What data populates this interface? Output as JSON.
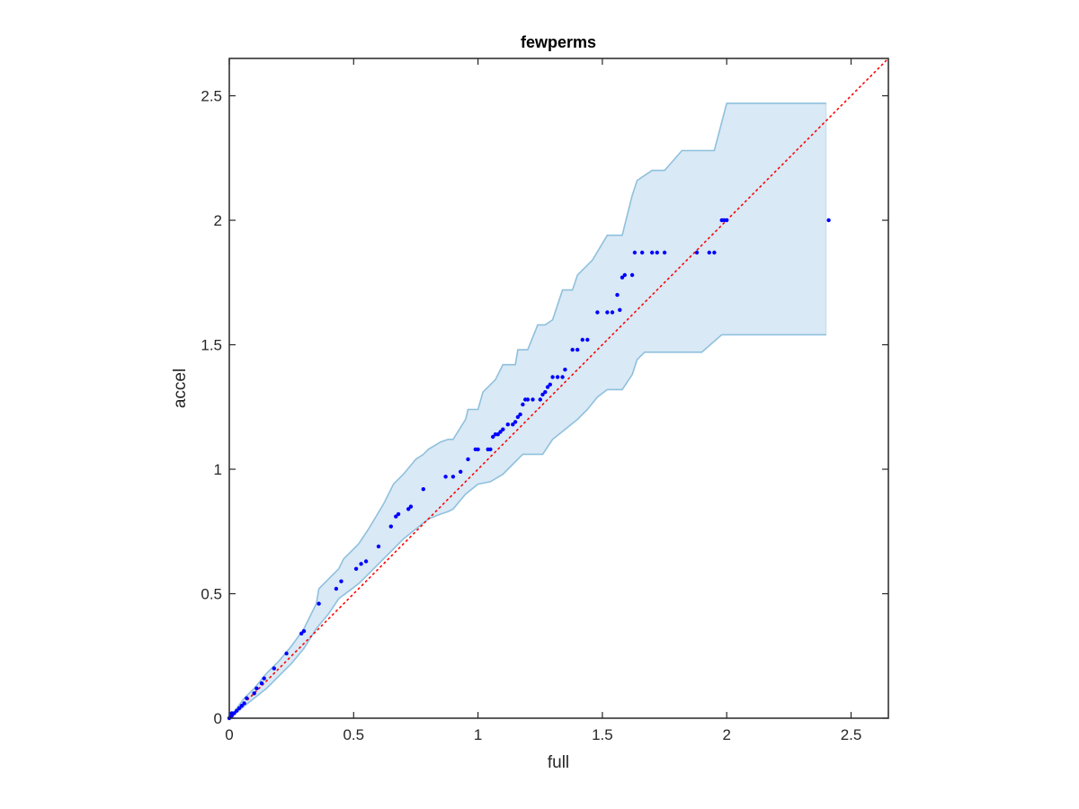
{
  "chart_data": {
    "type": "scatter",
    "title": "fewperms",
    "xlabel": "full",
    "ylabel": "accel",
    "xlim": [
      0,
      2.65
    ],
    "ylim": [
      0,
      2.65
    ],
    "xticks": [
      0,
      0.5,
      1,
      1.5,
      2,
      2.5
    ],
    "yticks": [
      0,
      0.5,
      1,
      1.5,
      2,
      2.5
    ],
    "xtick_labels": [
      "0",
      "0.5",
      "1",
      "1.5",
      "2",
      "2.5"
    ],
    "ytick_labels": [
      "0",
      "0.5",
      "1",
      "1.5",
      "2",
      "2.5"
    ],
    "grid": false,
    "box": true,
    "colors": {
      "points": "#0000ff",
      "reference_line": "#ff0000",
      "band_fill": "#d9e9f5",
      "band_edge": "#8fc0dd",
      "axes": "#262626"
    },
    "reference_line": {
      "style": "dotted",
      "from": [
        0,
        0
      ],
      "to": [
        2.65,
        2.65
      ]
    },
    "band": {
      "upper": [
        [
          0,
          0
        ],
        [
          0.03,
          0.04
        ],
        [
          0.06,
          0.08
        ],
        [
          0.1,
          0.12
        ],
        [
          0.15,
          0.18
        ],
        [
          0.2,
          0.23
        ],
        [
          0.25,
          0.29
        ],
        [
          0.3,
          0.36
        ],
        [
          0.35,
          0.46
        ],
        [
          0.36,
          0.52
        ],
        [
          0.4,
          0.56
        ],
        [
          0.44,
          0.6
        ],
        [
          0.46,
          0.64
        ],
        [
          0.5,
          0.68
        ],
        [
          0.52,
          0.7
        ],
        [
          0.56,
          0.76
        ],
        [
          0.62,
          0.86
        ],
        [
          0.66,
          0.94
        ],
        [
          0.7,
          0.98
        ],
        [
          0.75,
          1.04
        ],
        [
          0.78,
          1.06
        ],
        [
          0.8,
          1.08
        ],
        [
          0.85,
          1.11
        ],
        [
          0.88,
          1.12
        ],
        [
          0.9,
          1.12
        ],
        [
          0.95,
          1.2
        ],
        [
          0.96,
          1.24
        ],
        [
          1.0,
          1.24
        ],
        [
          1.02,
          1.31
        ],
        [
          1.07,
          1.36
        ],
        [
          1.1,
          1.42
        ],
        [
          1.15,
          1.42
        ],
        [
          1.16,
          1.48
        ],
        [
          1.18,
          1.48
        ],
        [
          1.2,
          1.48
        ],
        [
          1.24,
          1.58
        ],
        [
          1.27,
          1.58
        ],
        [
          1.3,
          1.6
        ],
        [
          1.34,
          1.72
        ],
        [
          1.38,
          1.72
        ],
        [
          1.4,
          1.78
        ],
        [
          1.46,
          1.84
        ],
        [
          1.52,
          1.94
        ],
        [
          1.55,
          1.94
        ],
        [
          1.58,
          1.94
        ],
        [
          1.62,
          2.1
        ],
        [
          1.64,
          2.16
        ],
        [
          1.7,
          2.2
        ],
        [
          1.75,
          2.2
        ],
        [
          1.82,
          2.28
        ],
        [
          1.9,
          2.28
        ],
        [
          1.95,
          2.28
        ],
        [
          2.0,
          2.47
        ],
        [
          2.4,
          2.47
        ]
      ],
      "lower": [
        [
          0,
          0
        ],
        [
          0.05,
          0.04
        ],
        [
          0.1,
          0.08
        ],
        [
          0.15,
          0.12
        ],
        [
          0.2,
          0.17
        ],
        [
          0.25,
          0.22
        ],
        [
          0.3,
          0.28
        ],
        [
          0.35,
          0.36
        ],
        [
          0.4,
          0.42
        ],
        [
          0.44,
          0.48
        ],
        [
          0.48,
          0.51
        ],
        [
          0.52,
          0.54
        ],
        [
          0.56,
          0.58
        ],
        [
          0.6,
          0.62
        ],
        [
          0.66,
          0.68
        ],
        [
          0.7,
          0.72
        ],
        [
          0.75,
          0.76
        ],
        [
          0.8,
          0.8
        ],
        [
          0.85,
          0.82
        ],
        [
          0.88,
          0.83
        ],
        [
          0.9,
          0.84
        ],
        [
          0.95,
          0.9
        ],
        [
          1.0,
          0.94
        ],
        [
          1.05,
          0.95
        ],
        [
          1.1,
          0.98
        ],
        [
          1.14,
          1.02
        ],
        [
          1.18,
          1.06
        ],
        [
          1.26,
          1.06
        ],
        [
          1.3,
          1.12
        ],
        [
          1.35,
          1.16
        ],
        [
          1.4,
          1.2
        ],
        [
          1.44,
          1.24
        ],
        [
          1.48,
          1.29
        ],
        [
          1.52,
          1.32
        ],
        [
          1.58,
          1.32
        ],
        [
          1.62,
          1.38
        ],
        [
          1.64,
          1.44
        ],
        [
          1.67,
          1.47
        ],
        [
          1.75,
          1.47
        ],
        [
          1.9,
          1.47
        ],
        [
          1.98,
          1.54
        ],
        [
          2.4,
          1.54
        ]
      ]
    },
    "series": [
      {
        "points": [
          [
            0.0,
            0.0
          ],
          [
            0.01,
            0.01
          ],
          [
            0.01,
            0.02
          ],
          [
            0.02,
            0.02
          ],
          [
            0.03,
            0.03
          ],
          [
            0.04,
            0.04
          ],
          [
            0.05,
            0.05
          ],
          [
            0.06,
            0.06
          ],
          [
            0.07,
            0.08
          ],
          [
            0.1,
            0.1
          ],
          [
            0.11,
            0.12
          ],
          [
            0.13,
            0.14
          ],
          [
            0.14,
            0.16
          ],
          [
            0.18,
            0.2
          ],
          [
            0.23,
            0.26
          ],
          [
            0.29,
            0.34
          ],
          [
            0.3,
            0.35
          ],
          [
            0.36,
            0.46
          ],
          [
            0.43,
            0.52
          ],
          [
            0.45,
            0.55
          ],
          [
            0.51,
            0.6
          ],
          [
            0.53,
            0.62
          ],
          [
            0.55,
            0.63
          ],
          [
            0.6,
            0.69
          ],
          [
            0.65,
            0.77
          ],
          [
            0.67,
            0.81
          ],
          [
            0.68,
            0.82
          ],
          [
            0.72,
            0.84
          ],
          [
            0.73,
            0.85
          ],
          [
            0.78,
            0.92
          ],
          [
            0.87,
            0.97
          ],
          [
            0.9,
            0.97
          ],
          [
            0.93,
            0.99
          ],
          [
            0.96,
            1.04
          ],
          [
            0.99,
            1.08
          ],
          [
            1.0,
            1.08
          ],
          [
            1.04,
            1.08
          ],
          [
            1.05,
            1.08
          ],
          [
            1.06,
            1.13
          ],
          [
            1.07,
            1.14
          ],
          [
            1.08,
            1.14
          ],
          [
            1.09,
            1.15
          ],
          [
            1.1,
            1.16
          ],
          [
            1.12,
            1.18
          ],
          [
            1.14,
            1.18
          ],
          [
            1.15,
            1.19
          ],
          [
            1.16,
            1.21
          ],
          [
            1.17,
            1.22
          ],
          [
            1.18,
            1.26
          ],
          [
            1.19,
            1.28
          ],
          [
            1.2,
            1.28
          ],
          [
            1.22,
            1.28
          ],
          [
            1.25,
            1.28
          ],
          [
            1.26,
            1.3
          ],
          [
            1.27,
            1.31
          ],
          [
            1.28,
            1.33
          ],
          [
            1.29,
            1.34
          ],
          [
            1.3,
            1.37
          ],
          [
            1.32,
            1.37
          ],
          [
            1.34,
            1.37
          ],
          [
            1.35,
            1.4
          ],
          [
            1.38,
            1.48
          ],
          [
            1.4,
            1.48
          ],
          [
            1.42,
            1.52
          ],
          [
            1.44,
            1.52
          ],
          [
            1.48,
            1.63
          ],
          [
            1.52,
            1.63
          ],
          [
            1.54,
            1.63
          ],
          [
            1.56,
            1.7
          ],
          [
            1.57,
            1.64
          ],
          [
            1.58,
            1.77
          ],
          [
            1.59,
            1.78
          ],
          [
            1.62,
            1.78
          ],
          [
            1.63,
            1.87
          ],
          [
            1.66,
            1.87
          ],
          [
            1.7,
            1.87
          ],
          [
            1.72,
            1.87
          ],
          [
            1.75,
            1.87
          ],
          [
            1.88,
            1.87
          ],
          [
            1.93,
            1.87
          ],
          [
            1.95,
            1.87
          ],
          [
            1.98,
            2.0
          ],
          [
            1.99,
            2.0
          ],
          [
            2.0,
            2.0
          ],
          [
            2.41,
            2.0
          ]
        ]
      }
    ]
  }
}
